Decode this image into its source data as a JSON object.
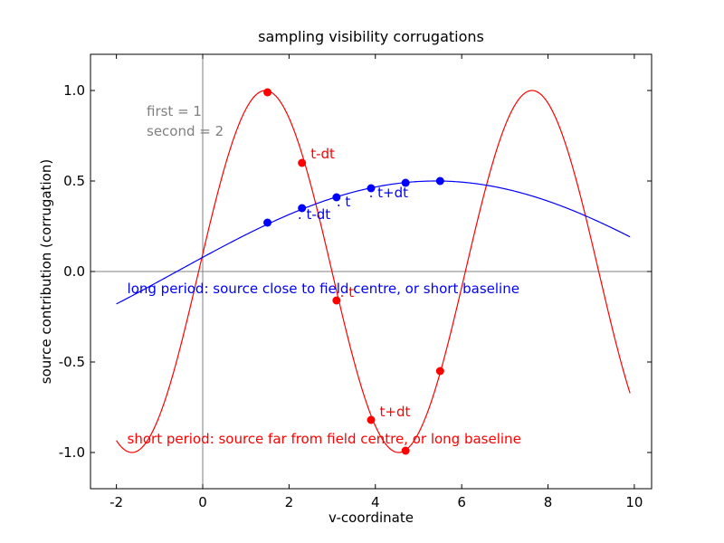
{
  "chart_data": {
    "type": "line",
    "title": "sampling visibility corrugations",
    "xlabel": "v-coordinate",
    "ylabel": "source contribution (corrugation)",
    "xlim": [
      -2.6,
      10.4
    ],
    "ylim": [
      -1.2,
      1.2
    ],
    "xticks": [
      -2,
      0,
      2,
      4,
      6,
      8,
      10
    ],
    "xtick_labels": [
      "-2",
      "0",
      "2",
      "4",
      "6",
      "8",
      "10"
    ],
    "yticks": [
      1.0,
      0.5,
      0.0,
      -0.5,
      -1.0
    ],
    "ytick_labels": [
      "1.0",
      "0.5",
      "0.0",
      "-0.5",
      "-1.0"
    ],
    "grid": false,
    "axis_lines": {
      "x": 0,
      "y": 0,
      "color": "#808080"
    },
    "series": [
      {
        "color": "#ff0000",
        "curve": {
          "amplitude": 1.0,
          "period": 6.18,
          "phase_x": 1.45,
          "x_start": -2.0,
          "x_end": 9.9
        },
        "points": {
          "x": [
            1.5,
            2.3,
            3.1,
            3.9,
            4.7,
            5.5
          ],
          "y": [
            0.99,
            0.6,
            -0.16,
            -0.82,
            -0.99,
            -0.55
          ]
        },
        "point_labels": [
          {
            "text": "t-dt",
            "x": 2.5,
            "y": 0.625
          },
          {
            "text": ". t",
            "x": 3.18,
            "y": -0.14
          },
          {
            "text": "t+dt",
            "x": 4.1,
            "y": -0.8
          }
        ]
      },
      {
        "color": "#0000ff",
        "curve": {
          "amplitude": 0.5,
          "period": 24.0,
          "phase_x": 5.4,
          "x_start": -2.0,
          "x_end": 9.9
        },
        "points": {
          "x": [
            1.5,
            2.3,
            3.1,
            3.9,
            4.7,
            5.5
          ],
          "y": [
            0.27,
            0.35,
            0.41,
            0.46,
            0.49,
            0.5
          ]
        },
        "point_labels": [
          {
            "text": ". t-dt",
            "x": 2.2,
            "y": 0.29
          },
          {
            "text": ". t",
            "x": 3.1,
            "y": 0.36
          },
          {
            "text": ". t+dt",
            "x": 3.85,
            "y": 0.41
          }
        ]
      }
    ],
    "annotations": [
      {
        "text": "first = 1",
        "x": -1.3,
        "y": 0.86,
        "color": "#808080"
      },
      {
        "text": "second = 2",
        "x": -1.3,
        "y": 0.75,
        "color": "#808080"
      },
      {
        "text": "long period: source close to field centre, or short baseline",
        "x": -1.75,
        "y": -0.12,
        "color": "#0000ff"
      },
      {
        "text": "short period: source far from field centre, or long baseline",
        "x": -1.75,
        "y": -0.95,
        "color": "#ff0000"
      }
    ]
  }
}
